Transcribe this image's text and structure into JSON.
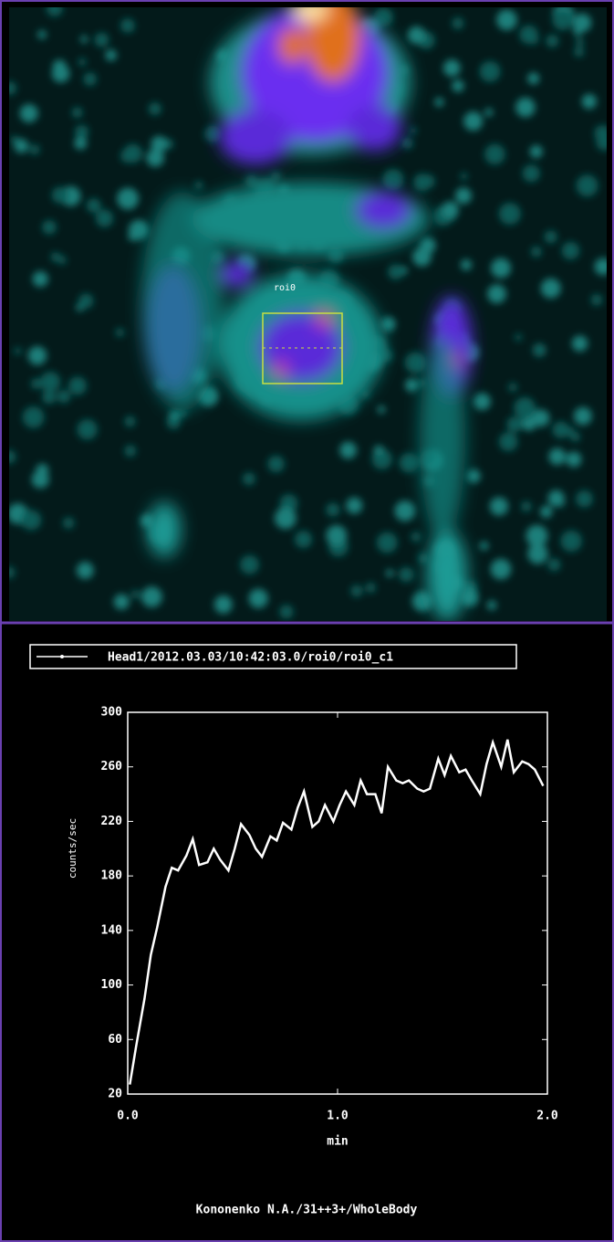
{
  "image": {
    "roi_label": "roi0"
  },
  "chart_data": {
    "type": "line",
    "xlabel": "min",
    "ylabel": "counts/sec",
    "xlim": [
      0,
      2
    ],
    "xticks": [
      {
        "value": 0,
        "label": "0.0"
      },
      {
        "value": 1,
        "label": "1.0"
      },
      {
        "value": 2,
        "label": "2.0"
      }
    ],
    "ylim": [
      20,
      300
    ],
    "yticks": [
      20,
      60,
      100,
      140,
      180,
      220,
      260,
      300
    ],
    "legend": "top",
    "x": [
      0.01,
      0.04,
      0.08,
      0.11,
      0.14,
      0.18,
      0.21,
      0.24,
      0.28,
      0.31,
      0.34,
      0.38,
      0.41,
      0.44,
      0.48,
      0.51,
      0.54,
      0.58,
      0.61,
      0.64,
      0.68,
      0.71,
      0.74,
      0.78,
      0.81,
      0.84,
      0.88,
      0.91,
      0.94,
      0.98,
      1.01,
      1.04,
      1.08,
      1.11,
      1.14,
      1.18,
      1.21,
      1.24,
      1.28,
      1.31,
      1.34,
      1.38,
      1.41,
      1.44,
      1.48,
      1.51,
      1.54,
      1.58,
      1.61,
      1.64,
      1.68,
      1.71,
      1.74,
      1.78,
      1.81,
      1.84,
      1.88,
      1.91,
      1.94,
      1.98
    ],
    "series": [
      {
        "name": "Head1/2012.03.03/10:42:03.0/roi0/roi0_c1",
        "color": "#ffffff",
        "values": [
          27,
          55,
          90,
          122,
          142,
          172,
          186,
          184,
          195,
          207,
          188,
          190,
          200,
          192,
          184,
          200,
          218,
          210,
          200,
          194,
          209,
          206,
          219,
          214,
          230,
          242,
          216,
          220,
          232,
          220,
          232,
          242,
          232,
          250,
          240,
          240,
          226,
          260,
          250,
          248,
          250,
          244,
          242,
          244,
          266,
          254,
          268,
          256,
          258,
          250,
          240,
          262,
          278,
          260,
          280,
          256,
          264,
          262,
          258,
          246
        ]
      }
    ]
  },
  "footer": "Kononenko N.A./31++3+/WholeBody"
}
